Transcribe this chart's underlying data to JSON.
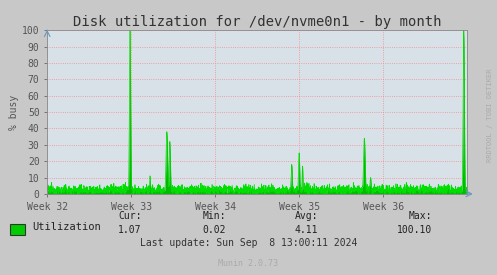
{
  "title": "Disk utilization for /dev/nvme0n1 - by month",
  "ylabel": "% busy",
  "xtick_labels": [
    "Week 32",
    "Week 33",
    "Week 34",
    "Week 35",
    "Week 36"
  ],
  "ytick_values": [
    0,
    10,
    20,
    30,
    40,
    50,
    60,
    70,
    80,
    90,
    100
  ],
  "line_color": "#00dd00",
  "fill_color": "#00bb00",
  "outer_bg_color": "#c8c8c8",
  "plot_bg_color": "#d8e0e8",
  "grid_color": "#ff8080",
  "grid_style": "dotted",
  "title_color": "#333333",
  "axis_color": "#555555",
  "tick_color": "#555555",
  "legend_label": "Utilization",
  "legend_color": "#00cc00",
  "cur_val": "1.07",
  "min_val": "0.02",
  "avg_val": "4.11",
  "max_val": "100.10",
  "last_update": "Last update: Sun Sep  8 13:00:11 2024",
  "munin_label": "Munin 2.0.73",
  "watermark": "RRDTOOL / TOBI OETIKER",
  "title_fontsize": 10,
  "axis_label_fontsize": 7,
  "tick_fontsize": 7,
  "legend_fontsize": 7.5,
  "stats_fontsize": 7,
  "watermark_fontsize": 5,
  "munin_fontsize": 6
}
